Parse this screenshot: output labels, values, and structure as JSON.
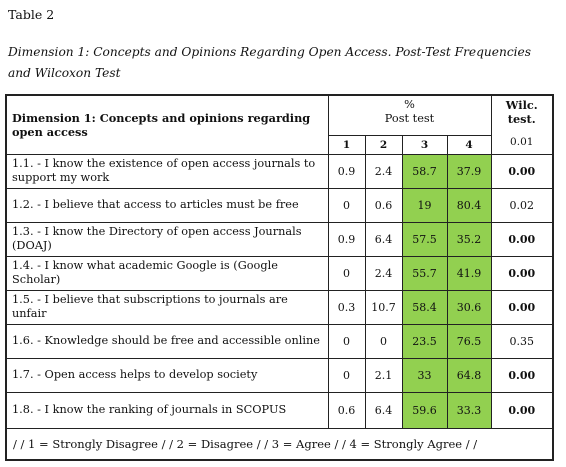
{
  "table_label": "Table 2",
  "caption": "Dimension 1: Concepts and Opinions Regarding Open Access. Post-Test Frequencies and Wilcoxon Test",
  "header": {
    "dimension": "Dimension 1: Concepts and opinions regarding open access",
    "percent_symbol": "%",
    "post_test": "Post test",
    "wilc_title": "Wilc. test.",
    "wilc_level": "0.01",
    "cols": [
      "1",
      "2",
      "3",
      "4"
    ]
  },
  "rows": [
    {
      "item": "1.1. - I know the existence of open access journals to support my work",
      "c1": "0.9",
      "c2": "2.4",
      "c3": "58.7",
      "c4": "37.9",
      "wilc": "0.00"
    },
    {
      "item": "1.2. - I believe that access to articles must be free",
      "c1": "0",
      "c2": "0.6",
      "c3": "19",
      "c4": "80.4",
      "wilc": "0.02"
    },
    {
      "item": "1.3. - I know the Directory of open access Journals (DOAJ)",
      "c1": "0.9",
      "c2": "6.4",
      "c3": "57.5",
      "c4": "35.2",
      "wilc": "0.00"
    },
    {
      "item": "1.4. - I know what academic Google is  (Google Scholar)",
      "c1": "0",
      "c2": "2.4",
      "c3": "55.7",
      "c4": "41.9",
      "wilc": "0.00"
    },
    {
      "item": "1.5. - I believe that subscriptions to journals are unfair",
      "c1": "0.3",
      "c2": "10.7",
      "c3": "58.4",
      "c4": "30.6",
      "wilc": "0.00"
    },
    {
      "item": "1.6. - Knowledge should be free and accessible online",
      "c1": "0",
      "c2": "0",
      "c3": "23.5",
      "c4": "76.5",
      "wilc": "0.35"
    },
    {
      "item": "1.7. - Open access helps to develop society",
      "c1": "0",
      "c2": "2.1",
      "c3": "33",
      "c4": "64.8",
      "wilc": "0.00"
    },
    {
      "item": "1.8. - I know the ranking of journals in SCOPUS",
      "c1": "0.6",
      "c2": "6.4",
      "c3": "59.6",
      "c4": "33.3",
      "wilc": "0.00"
    }
  ],
  "legend": "/ / 1 = Strongly Disagree / / 2 = Disagree / / 3 = Agree / / 4 = Strongly Agree / /",
  "colors": {
    "highlight": "#92d050"
  }
}
